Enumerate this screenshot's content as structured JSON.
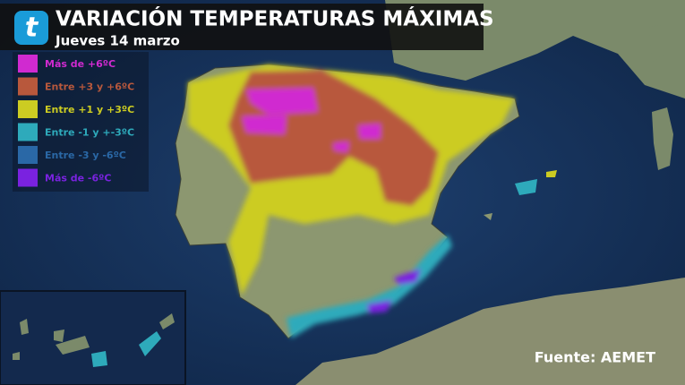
{
  "header": {
    "logo": "t",
    "title": "VARIACIÓN TEMPERATURAS MÁXIMAS",
    "subtitle": "Jueves 14 marzo"
  },
  "legend": [
    {
      "label": "Más de +6ºC",
      "color": "#d02ad0"
    },
    {
      "label": "Entre +3 y +6ºC",
      "color": "#b8583c"
    },
    {
      "label": "Entre +1 y +3ºC",
      "color": "#cccc22"
    },
    {
      "label": "Entre -1 y +-3ºC",
      "color": "#2eaabb"
    },
    {
      "label": "Entre -3 y -6ºC",
      "color": "#2a68a6"
    },
    {
      "label": "Más de -6ºC",
      "color": "#7a22e0"
    }
  ],
  "source": "Fuente: AEMET"
}
